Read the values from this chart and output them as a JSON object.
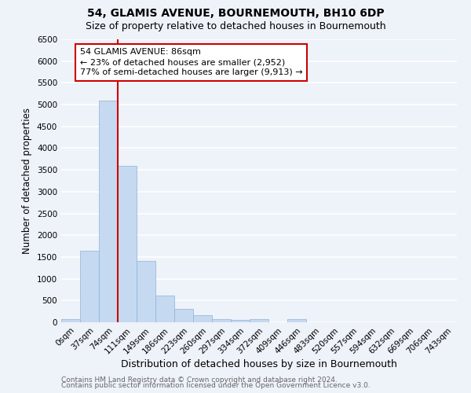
{
  "title": "54, GLAMIS AVENUE, BOURNEMOUTH, BH10 6DP",
  "subtitle": "Size of property relative to detached houses in Bournemouth",
  "xlabel": "Distribution of detached houses by size in Bournemouth",
  "ylabel": "Number of detached properties",
  "footnote1": "Contains HM Land Registry data © Crown copyright and database right 2024.",
  "footnote2": "Contains public sector information licensed under the Open Government Licence v3.0.",
  "annotation_line1": "54 GLAMIS AVENUE: 86sqm",
  "annotation_line2": "← 23% of detached houses are smaller (2,952)",
  "annotation_line3": "77% of semi-detached houses are larger (9,913) →",
  "bar_color": "#c5d9f0",
  "bar_edge_color": "#8ab4d8",
  "vline_color": "#cc0000",
  "vline_x": 2.5,
  "ylim": [
    0,
    6500
  ],
  "yticks": [
    0,
    500,
    1000,
    1500,
    2000,
    2500,
    3000,
    3500,
    4000,
    4500,
    5000,
    5500,
    6000,
    6500
  ],
  "categories": [
    "0sqm",
    "37sqm",
    "74sqm",
    "111sqm",
    "149sqm",
    "186sqm",
    "223sqm",
    "260sqm",
    "297sqm",
    "334sqm",
    "372sqm",
    "409sqm",
    "446sqm",
    "483sqm",
    "520sqm",
    "557sqm",
    "594sqm",
    "632sqm",
    "669sqm",
    "706sqm",
    "743sqm"
  ],
  "values": [
    75,
    1650,
    5100,
    3600,
    1400,
    620,
    305,
    155,
    80,
    55,
    75,
    0,
    65,
    0,
    0,
    0,
    0,
    0,
    0,
    0,
    0
  ],
  "background_color": "#eef2f9",
  "grid_color": "#ffffff",
  "title_fontsize": 10,
  "subtitle_fontsize": 9,
  "ylabel_fontsize": 8.5,
  "xlabel_fontsize": 9,
  "tick_fontsize": 7.5,
  "footnote_fontsize": 6.5,
  "annot_fontsize": 8
}
